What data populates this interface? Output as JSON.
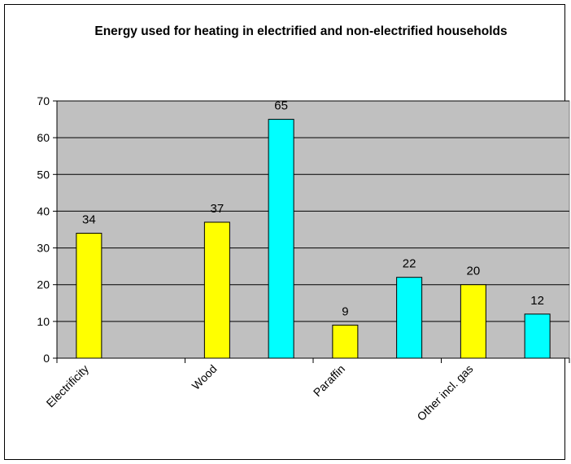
{
  "chart_data": {
    "type": "bar",
    "title": "Energy used for heating in electrified and non-electrified households",
    "xlabel": "",
    "ylabel": "",
    "ylim": [
      0,
      70
    ],
    "yticks": [
      0,
      10,
      20,
      30,
      40,
      50,
      60,
      70
    ],
    "grid": true,
    "legend": "none",
    "plot_background": "#c0c0c0",
    "categories": [
      "Electrificity",
      "Wood",
      "Paraffin",
      "Other incl. gas"
    ],
    "bars": [
      {
        "category": "Electrificity",
        "value": 34,
        "label": "34",
        "color": "#ffff00"
      },
      {
        "category": "Electrificity",
        "value": null,
        "label": "",
        "color": "#00ffff"
      },
      {
        "category": "Wood",
        "value": 37,
        "label": "37",
        "color": "#ffff00"
      },
      {
        "category": "Wood",
        "value": 65,
        "label": "65",
        "color": "#00ffff"
      },
      {
        "category": "Paraffin",
        "value": 9,
        "label": "9",
        "color": "#ffff00"
      },
      {
        "category": "Paraffin",
        "value": 22,
        "label": "22",
        "color": "#00ffff"
      },
      {
        "category": "Other incl. gas",
        "value": 20,
        "label": "20",
        "color": "#ffff00"
      },
      {
        "category": "Other incl. gas",
        "value": 12,
        "label": "12",
        "color": "#00ffff"
      }
    ]
  }
}
